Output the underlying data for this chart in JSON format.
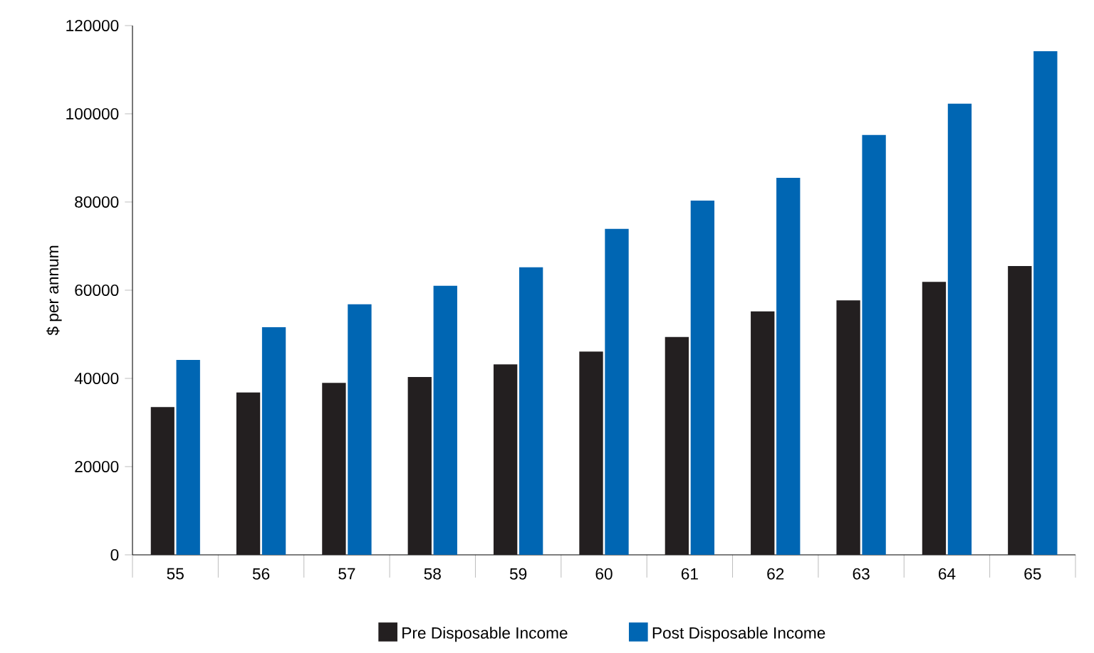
{
  "chart_data": {
    "type": "bar",
    "ylabel": "$ per annum",
    "categories": [
      "55",
      "56",
      "57",
      "58",
      "59",
      "60",
      "61",
      "62",
      "63",
      "64",
      "65"
    ],
    "series": [
      {
        "name": "Pre Disposable Income",
        "color": "#231f20",
        "values": [
          33500,
          36800,
          39000,
          40300,
          43200,
          46100,
          49400,
          55200,
          57700,
          61900,
          65500
        ]
      },
      {
        "name": "Post Disposable Income",
        "color": "#0066b3",
        "values": [
          44200,
          51600,
          56800,
          61000,
          65200,
          73900,
          80300,
          85500,
          95200,
          102300,
          114200
        ]
      }
    ],
    "ylim": [
      0,
      120000
    ],
    "yticks": [
      0,
      20000,
      40000,
      60000,
      80000,
      100000,
      120000
    ],
    "grid": false,
    "legend": "bottom"
  }
}
